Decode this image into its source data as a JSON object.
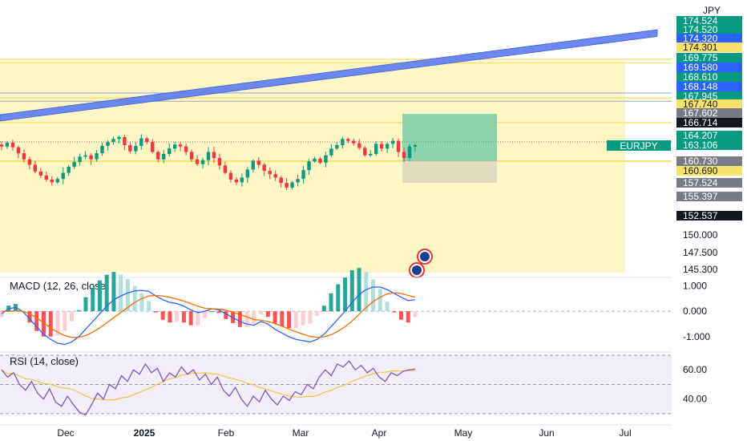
{
  "currency": "JPY",
  "symbol": "EURJPY",
  "colors": {
    "up": "#089981",
    "down": "#f23645",
    "zone": "#fff6c6",
    "zone_line": "#f7e26b",
    "channel": "#5b7cf0",
    "target": "#7fd0a8",
    "stop": "#ddd5bf",
    "macd_line": "#2962ff",
    "signal_line": "#ff6d00",
    "rsi_line": "#7e57c2",
    "rsi_ma": "#f7c244"
  },
  "price_tags": [
    {
      "label": "174.524",
      "value": 174.524,
      "bg": "#089981"
    },
    {
      "label": "174.520",
      "value": 174.52,
      "bg": "#089981"
    },
    {
      "label": "174.320",
      "value": 174.32,
      "bg": "#2962ff"
    },
    {
      "label": "174.301",
      "value": 174.301,
      "bg": "#f7e26b",
      "dark": true
    },
    {
      "label": "169.775",
      "value": 169.775,
      "bg": "#089981"
    },
    {
      "label": "169.580",
      "value": 169.58,
      "bg": "#2962ff"
    },
    {
      "label": "168.610",
      "value": 168.61,
      "bg": "#089981"
    },
    {
      "label": "168.148",
      "value": 168.148,
      "bg": "#2962ff"
    },
    {
      "label": "167.945",
      "value": 167.945,
      "bg": "#089981"
    },
    {
      "label": "167.740",
      "value": 167.74,
      "bg": "#f7e26b",
      "dark": true
    },
    {
      "label": "167.602",
      "value": 167.602,
      "bg": "#787b86"
    },
    {
      "label": "166.714",
      "value": 166.714,
      "bg": "#131722"
    },
    {
      "label": "164.207",
      "value": 164.207,
      "bg": "#089981"
    },
    {
      "label": "163.106",
      "value": 163.106,
      "bg": "#089981"
    },
    {
      "label": "160.730",
      "value": 160.73,
      "bg": "#787b86"
    },
    {
      "label": "160.690",
      "value": 160.69,
      "bg": "#f7e26b",
      "dark": true
    },
    {
      "label": "157.524",
      "value": 157.524,
      "bg": "#787b86"
    },
    {
      "label": "155.397",
      "value": 155.397,
      "bg": "#787b86"
    },
    {
      "label": "152.537",
      "value": 152.537,
      "bg": "#131722"
    }
  ],
  "price_ticks": [
    "150.000",
    "147.500",
    "145.300"
  ],
  "macd_ticks": [
    "1.000",
    "0.000",
    "-1.000"
  ],
  "rsi_ticks": [
    "60.00",
    "40.00"
  ],
  "macd_title": "MACD (12, 26, close)",
  "rsi_title": "RSI (14, close)",
  "x_labels": [
    {
      "label": "Dec",
      "bold": false
    },
    {
      "label": "2025",
      "bold": true
    },
    {
      "label": "Feb",
      "bold": false
    },
    {
      "label": "Mar",
      "bold": false
    },
    {
      "label": "Apr",
      "bold": false
    },
    {
      "label": "May",
      "bold": false
    },
    {
      "label": "Jun",
      "bold": false
    },
    {
      "label": "Jul",
      "bold": false
    }
  ],
  "chart_data": {
    "type": "candlestick",
    "xlabel": "",
    "ylabel": "",
    "date_range": [
      "2024-11-11",
      "2025-04-14"
    ],
    "close_anchors": [
      162.9,
      163.5,
      162.8,
      161.9,
      161.0,
      160.2,
      159.2,
      158.6,
      158.0,
      157.6,
      158.1,
      159.0,
      159.9,
      160.6,
      161.4,
      161.6,
      161.0,
      161.9,
      163.0,
      163.6,
      164.1,
      164.4,
      163.1,
      162.2,
      163.0,
      164.2,
      163.6,
      162.1,
      161.0,
      161.8,
      162.6,
      163.2,
      162.9,
      162.1,
      161.0,
      160.3,
      160.9,
      162.1,
      161.2,
      160.1,
      159.0,
      158.0,
      157.6,
      158.3,
      159.5,
      160.8,
      160.2,
      159.3,
      158.8,
      158.3,
      157.5,
      156.8,
      157.6,
      158.1,
      159.4,
      160.7,
      161.1,
      160.5,
      161.6,
      162.6,
      163.1,
      164.1,
      163.8,
      163.4,
      162.7,
      161.6,
      161.8,
      163.3,
      162.6,
      163.3,
      163.8,
      162.1,
      161.2,
      162.9,
      163.1
    ],
    "macd": [
      -0.1,
      0.1,
      0.15,
      0.0,
      -0.3,
      -0.6,
      -0.9,
      -1.1,
      -1.25,
      -1.3,
      -1.2,
      -1.0,
      -0.7,
      -0.4,
      -0.1,
      0.2,
      0.45,
      0.6,
      0.72,
      0.8,
      0.82,
      0.78,
      0.6,
      0.45,
      0.35,
      0.3,
      0.2,
      0.05,
      -0.05,
      0.0,
      0.1,
      0.05,
      -0.1,
      -0.25,
      -0.4,
      -0.5,
      -0.55,
      -0.4,
      -0.5,
      -0.7,
      -0.85,
      -1.0,
      -1.1,
      -1.15,
      -1.2,
      -1.1,
      -0.9,
      -0.6,
      -0.3,
      0.0,
      0.35,
      0.65,
      0.85,
      0.95,
      0.95,
      0.85,
      0.7,
      0.55,
      0.42,
      0.45
    ],
    "signal": [
      0.0,
      0.0,
      0.02,
      0.0,
      -0.1,
      -0.25,
      -0.45,
      -0.65,
      -0.82,
      -0.95,
      -1.02,
      -1.02,
      -0.95,
      -0.82,
      -0.65,
      -0.45,
      -0.25,
      -0.05,
      0.15,
      0.35,
      0.5,
      0.6,
      0.62,
      0.6,
      0.55,
      0.48,
      0.4,
      0.3,
      0.2,
      0.12,
      0.1,
      0.08,
      0.04,
      -0.04,
      -0.12,
      -0.22,
      -0.32,
      -0.35,
      -0.4,
      -0.48,
      -0.58,
      -0.7,
      -0.8,
      -0.9,
      -0.98,
      -1.02,
      -1.0,
      -0.92,
      -0.78,
      -0.6,
      -0.38,
      -0.12,
      0.15,
      0.38,
      0.55,
      0.68,
      0.72,
      0.7,
      0.62,
      0.55
    ],
    "rsi": [
      60.0,
      55.0,
      58.0,
      50.0,
      46.0,
      52.0,
      44.0,
      40.0,
      47.0,
      38.0,
      35.0,
      42.0,
      36.0,
      31.0,
      29.0,
      36.0,
      44.0,
      40.0,
      50.0,
      47.0,
      56.0,
      52.0,
      60.0,
      57.0,
      64.0,
      58.0,
      61.0,
      52.0,
      58.0,
      55.0,
      62.0,
      57.0,
      60.0,
      53.0,
      57.0,
      50.0,
      55.0,
      46.0,
      42.0,
      48.0,
      40.0,
      35.0,
      42.0,
      38.0,
      46.0,
      40.0,
      36.0,
      42.0,
      39.0,
      45.0,
      43.0,
      50.0,
      47.0,
      55.0,
      60.0,
      56.0,
      64.0,
      62.0,
      66.0,
      60.0,
      63.0,
      58.0,
      61.0,
      55.0,
      52.0,
      58.0,
      56.0,
      59.0,
      60.0,
      60.5
    ],
    "y_range_price": [
      145.3,
      175.0
    ],
    "y_range_macd": [
      -1.5,
      1.2
    ],
    "y_range_rsi": [
      25,
      70
    ],
    "zone": [
      160.69,
      167.74
    ],
    "trade": {
      "entry": 160.73,
      "target": 166.714,
      "stop": 157.524
    },
    "channel_ref_prices": [
      166.714,
      169.775,
      174.52,
      174.32
    ]
  }
}
